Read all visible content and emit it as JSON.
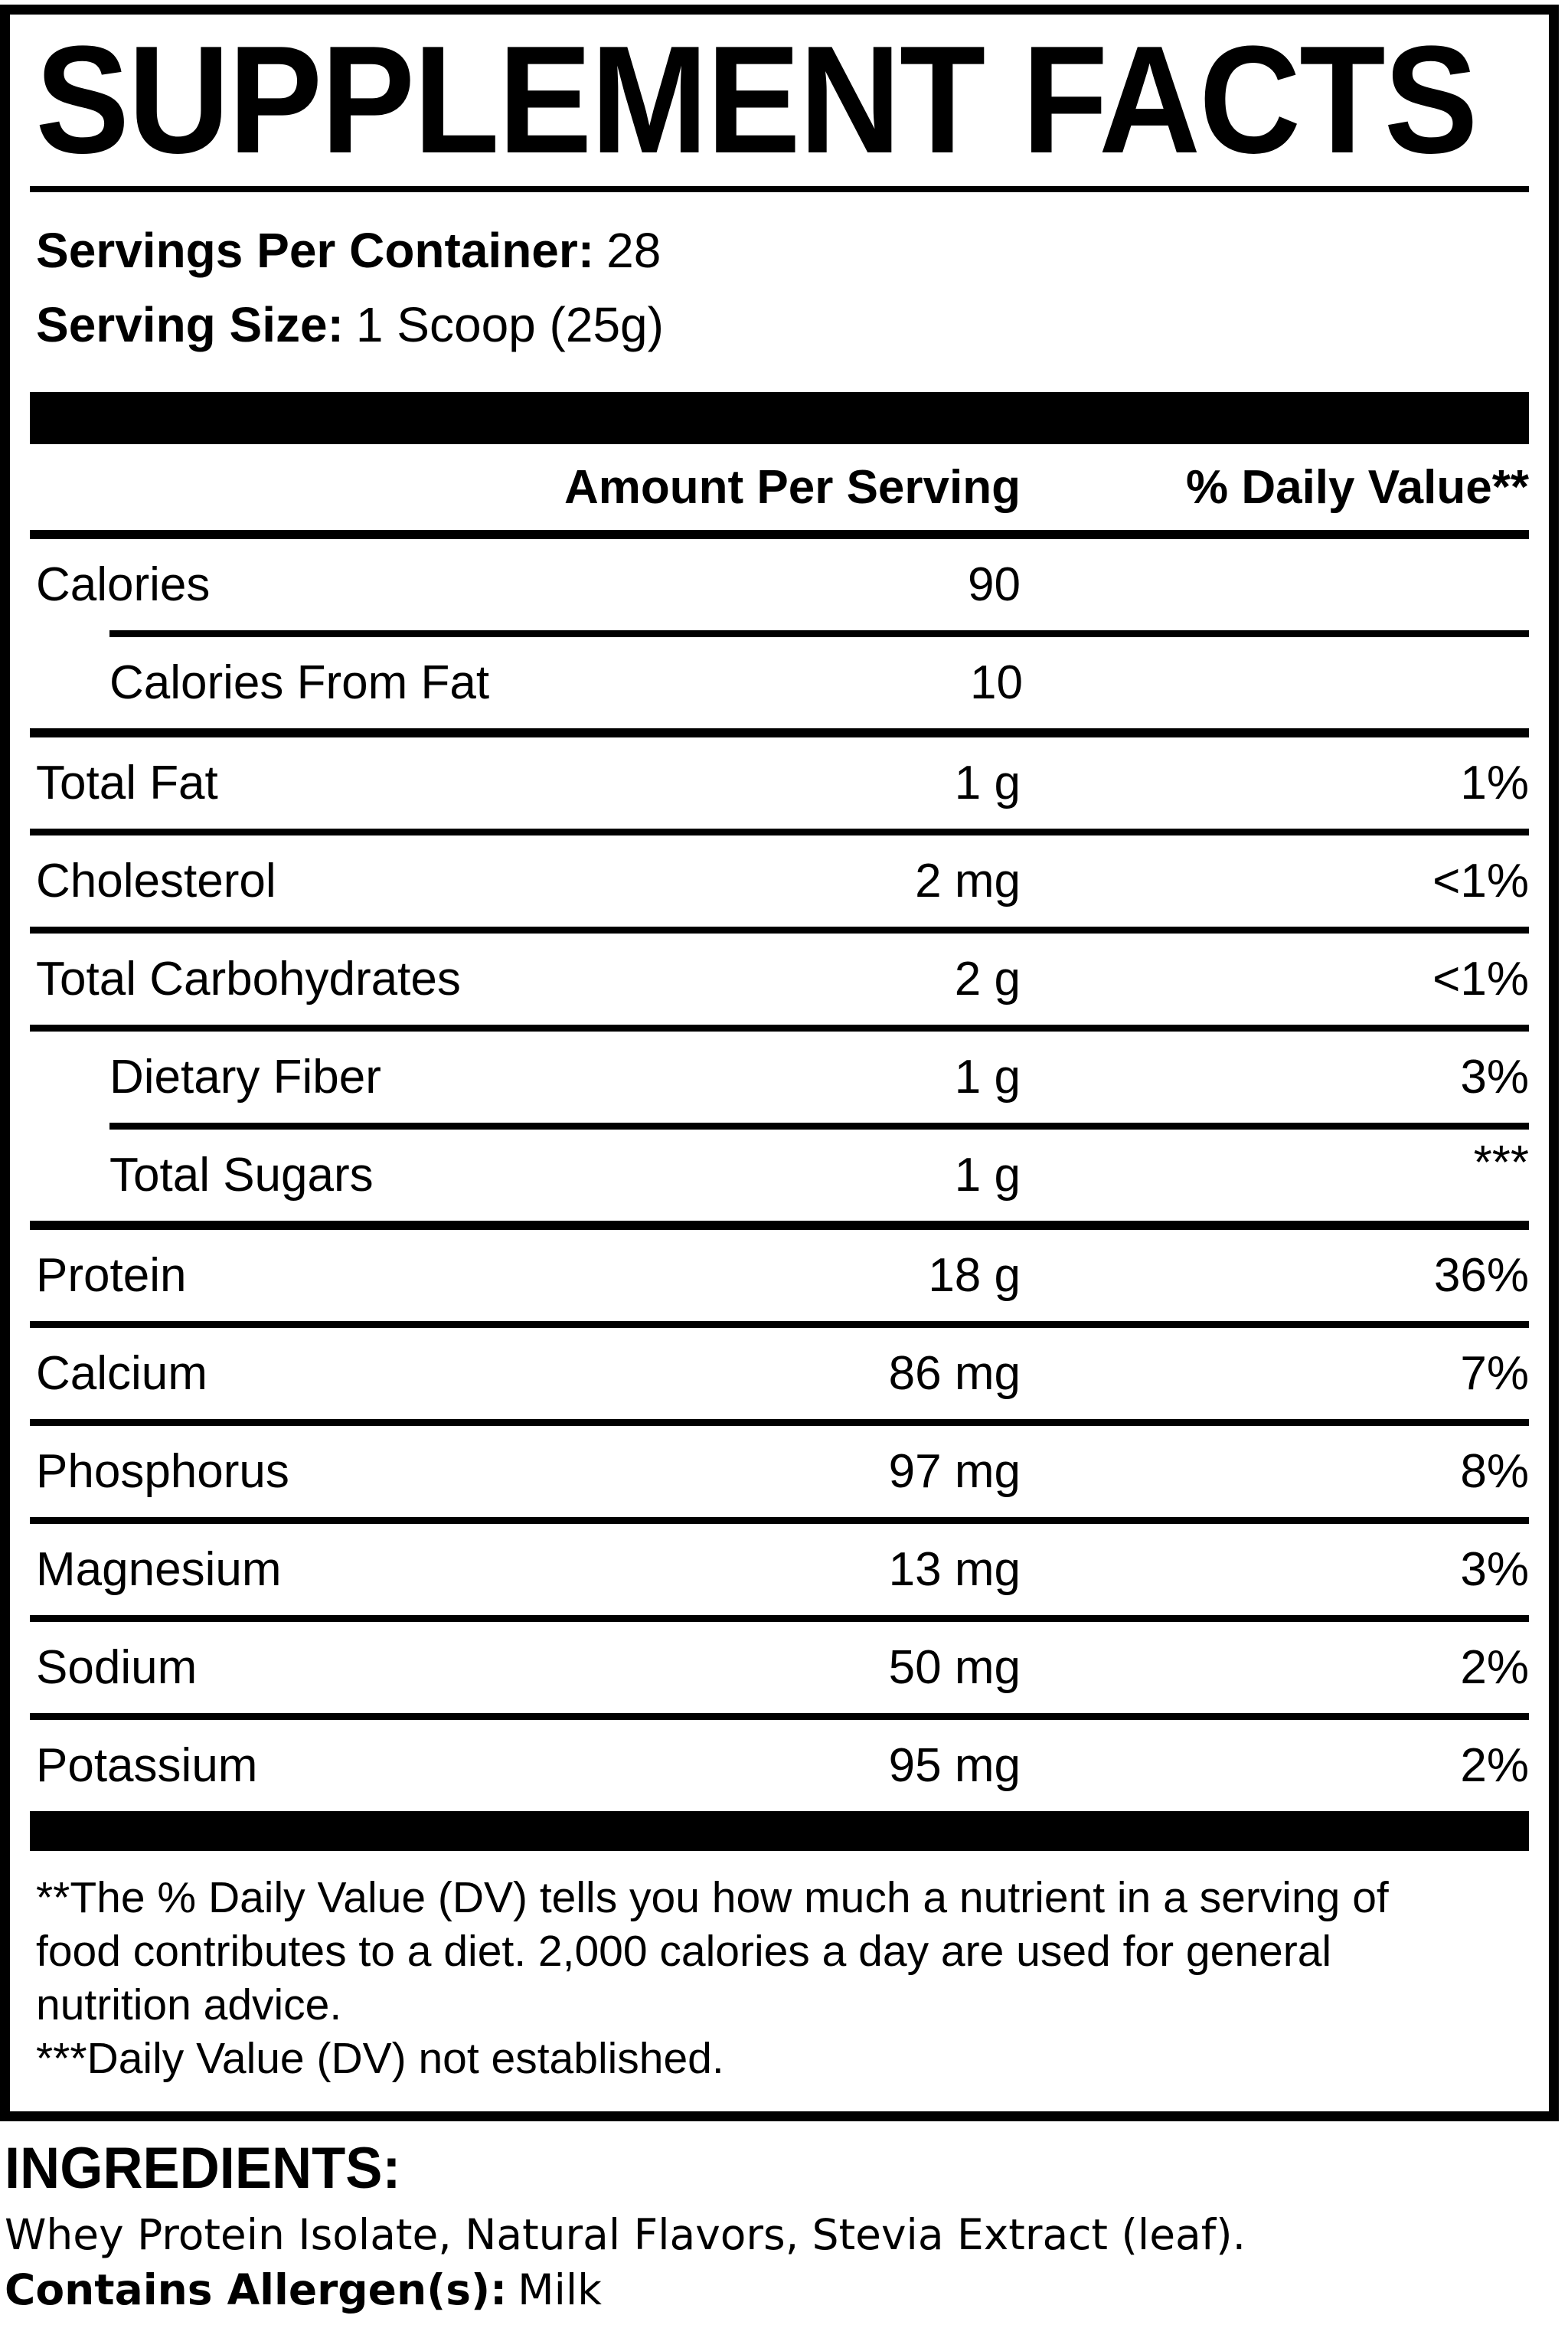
{
  "title": "SUPPLEMENT FACTS",
  "serving_info": {
    "servings_per_container_label": "Servings Per Container:",
    "servings_per_container_value": "28",
    "serving_size_label": "Serving Size:",
    "serving_size_value": "1 Scoop (25g)"
  },
  "table": {
    "headers": {
      "amount": "Amount Per Serving",
      "daily_value": "% Daily Value**"
    },
    "rows": [
      {
        "name": "Calories",
        "amount": "90",
        "dv": "",
        "indent": false,
        "sep": "indented"
      },
      {
        "name": "Calories From Fat",
        "amount": "10",
        "dv": "",
        "indent": true,
        "sep": "thick"
      },
      {
        "name": "Total Fat",
        "amount": "1 g",
        "dv": "1%",
        "indent": false,
        "sep": "full"
      },
      {
        "name": "Cholesterol",
        "amount": "2 mg",
        "dv": "<1%",
        "indent": false,
        "sep": "full"
      },
      {
        "name": "Total Carbohydrates",
        "amount": "2 g",
        "dv": "<1%",
        "indent": false,
        "sep": "full"
      },
      {
        "name": "Dietary Fiber",
        "amount": "1 g",
        "dv": "3%",
        "indent": true,
        "sep": "indented"
      },
      {
        "name": "Total Sugars",
        "amount": "1 g",
        "dv": "***",
        "indent": true,
        "sep": "thick"
      },
      {
        "name": "Protein",
        "amount": "18 g",
        "dv": "36%",
        "indent": false,
        "sep": "full"
      },
      {
        "name": "Calcium",
        "amount": "86 mg",
        "dv": "7%",
        "indent": false,
        "sep": "full"
      },
      {
        "name": "Phosphorus",
        "amount": "97 mg",
        "dv": "8%",
        "indent": false,
        "sep": "full"
      },
      {
        "name": "Magnesium",
        "amount": "13 mg",
        "dv": "3%",
        "indent": false,
        "sep": "full"
      },
      {
        "name": "Sodium",
        "amount": "50 mg",
        "dv": "2%",
        "indent": false,
        "sep": "full"
      },
      {
        "name": "Potassium",
        "amount": "95 mg",
        "dv": "2%",
        "indent": false,
        "sep": "none"
      }
    ]
  },
  "footnotes": {
    "daily_value_note": "**The % Daily Value (DV) tells you how much a nutrient in a serving of food contributes to a diet. 2,000 calories a day are used for general nutrition advice.",
    "not_established_note": "***Daily Value (DV) not established."
  },
  "ingredients": {
    "heading": "INGREDIENTS:",
    "list": "Whey Protein Isolate, Natural Flavors, Stevia Extract (leaf).",
    "allergen_label": "Contains Allergen(s):",
    "allergen_value": "Milk"
  },
  "colors": {
    "ink": "#000000",
    "paper": "#ffffff"
  }
}
